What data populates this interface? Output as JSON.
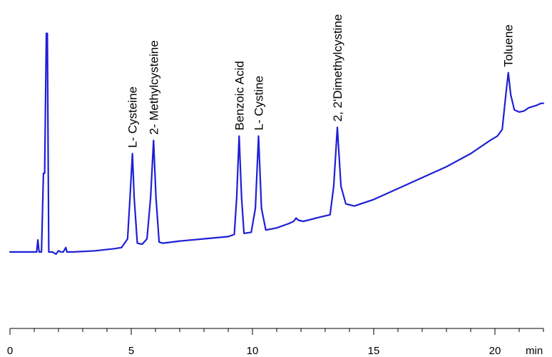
{
  "chart_data": {
    "type": "line",
    "title": "",
    "xlabel": "",
    "ylabel": "",
    "x_unit": "min",
    "xlim": [
      0,
      22
    ],
    "ylim": [
      -0.35,
      1.12
    ],
    "x_ticks": [
      0,
      5,
      10,
      15,
      20
    ],
    "x_tick_labels": [
      "0",
      "5",
      "10",
      "15",
      "20"
    ],
    "x_minor_step": 1,
    "grid": false,
    "line_color": "#1f1fd6",
    "series": [
      {
        "values": [
          [
            0.0,
            0.0
          ],
          [
            0.9,
            0.0
          ],
          [
            1.1,
            0.0
          ],
          [
            1.15,
            0.055
          ],
          [
            1.2,
            0.0
          ],
          [
            1.3,
            0.0
          ],
          [
            1.38,
            0.36
          ],
          [
            1.43,
            0.36
          ],
          [
            1.5,
            1.0
          ],
          [
            1.54,
            1.0
          ],
          [
            1.6,
            0.0
          ],
          [
            1.75,
            0.0
          ],
          [
            1.9,
            -0.01
          ],
          [
            2.0,
            0.005
          ],
          [
            2.1,
            0.0
          ],
          [
            2.2,
            0.0
          ],
          [
            2.3,
            0.02
          ],
          [
            2.35,
            0.0
          ],
          [
            2.6,
            0.0
          ],
          [
            3.5,
            0.005
          ],
          [
            4.3,
            0.015
          ],
          [
            4.6,
            0.02
          ],
          [
            4.85,
            0.06
          ],
          [
            4.95,
            0.25
          ],
          [
            5.05,
            0.45
          ],
          [
            5.12,
            0.25
          ],
          [
            5.25,
            0.04
          ],
          [
            5.45,
            0.035
          ],
          [
            5.65,
            0.06
          ],
          [
            5.8,
            0.25
          ],
          [
            5.92,
            0.51
          ],
          [
            6.02,
            0.25
          ],
          [
            6.15,
            0.045
          ],
          [
            6.3,
            0.04
          ],
          [
            7.0,
            0.05
          ],
          [
            8.0,
            0.06
          ],
          [
            9.0,
            0.07
          ],
          [
            9.25,
            0.08
          ],
          [
            9.35,
            0.25
          ],
          [
            9.45,
            0.53
          ],
          [
            9.55,
            0.25
          ],
          [
            9.65,
            0.085
          ],
          [
            9.95,
            0.09
          ],
          [
            10.12,
            0.2
          ],
          [
            10.25,
            0.53
          ],
          [
            10.37,
            0.2
          ],
          [
            10.55,
            0.1
          ],
          [
            11.0,
            0.11
          ],
          [
            11.5,
            0.13
          ],
          [
            11.7,
            0.14
          ],
          [
            11.8,
            0.155
          ],
          [
            11.9,
            0.145
          ],
          [
            12.1,
            0.14
          ],
          [
            12.8,
            0.16
          ],
          [
            13.2,
            0.17
          ],
          [
            13.35,
            0.3
          ],
          [
            13.5,
            0.57
          ],
          [
            13.65,
            0.3
          ],
          [
            13.85,
            0.22
          ],
          [
            14.2,
            0.21
          ],
          [
            15.0,
            0.24
          ],
          [
            16.0,
            0.29
          ],
          [
            17.0,
            0.34
          ],
          [
            18.0,
            0.39
          ],
          [
            19.0,
            0.45
          ],
          [
            19.8,
            0.51
          ],
          [
            20.1,
            0.53
          ],
          [
            20.3,
            0.56
          ],
          [
            20.45,
            0.72
          ],
          [
            20.55,
            0.82
          ],
          [
            20.65,
            0.72
          ],
          [
            20.8,
            0.65
          ],
          [
            21.0,
            0.64
          ],
          [
            21.2,
            0.645
          ],
          [
            21.4,
            0.66
          ],
          [
            21.7,
            0.67
          ],
          [
            21.9,
            0.68
          ],
          [
            22.0,
            0.68
          ]
        ]
      }
    ],
    "annotations": [
      {
        "text": "L- Cysteine",
        "x": 5.05
      },
      {
        "text": "2- Methylcysteine",
        "x": 5.92
      },
      {
        "text": "Benzoic Acid",
        "x": 9.45
      },
      {
        "text": "L- Cystine",
        "x": 10.25
      },
      {
        "text": "2, 2'Dimethylcystine",
        "x": 13.5
      },
      {
        "text": "Toluene",
        "x": 20.55
      }
    ]
  }
}
